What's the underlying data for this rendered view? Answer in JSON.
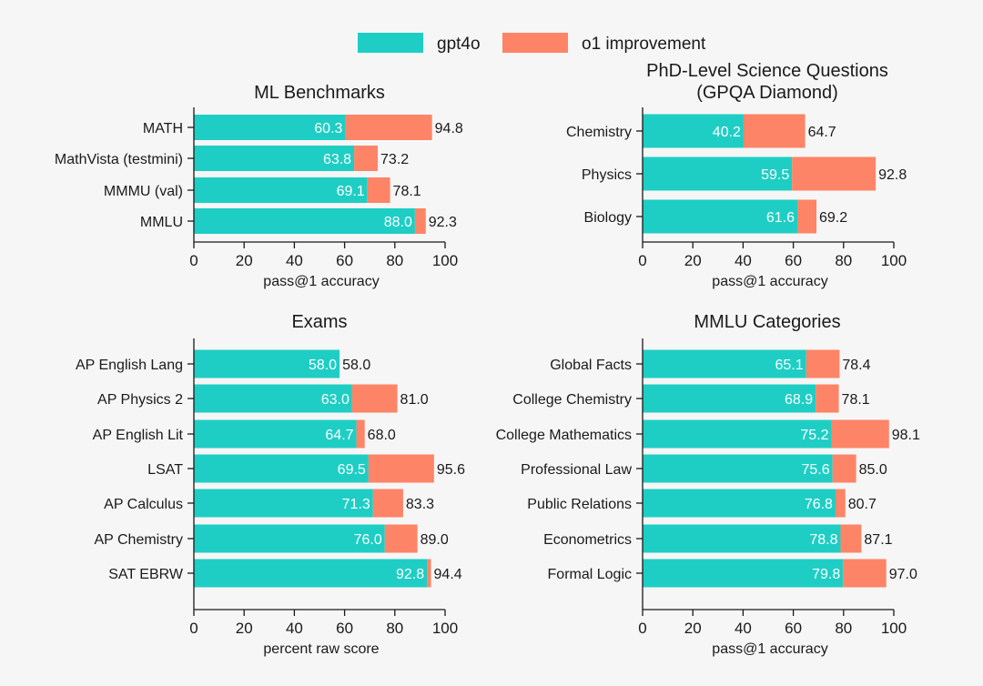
{
  "colors": {
    "background": "#f6f6f6",
    "base": "#1ecec4",
    "improvement": "#fd8466",
    "axis": "#1a1a1a",
    "text": "#1a1a1a",
    "inner_label": "#ffffff"
  },
  "legend": {
    "items": [
      {
        "key": "base",
        "label": "gpt4o"
      },
      {
        "key": "improvement",
        "label": "o1 improvement"
      }
    ]
  },
  "chart_data": [
    {
      "id": "ml",
      "type": "bar",
      "title": "ML Benchmarks",
      "xlabel": "pass@1 accuracy",
      "xlim": [
        0,
        100
      ],
      "xticks": [
        "0",
        "20",
        "40",
        "60",
        "80",
        "100"
      ],
      "categories": [
        "MATH",
        "MathVista (testmini)",
        "MMMU (val)",
        "MMLU"
      ],
      "series": [
        {
          "name": "gpt4o",
          "values": [
            60.3,
            63.8,
            69.1,
            88.0
          ],
          "labels": [
            "60.3",
            "63.8",
            "69.1",
            "88.0"
          ]
        },
        {
          "name": "o1",
          "values": [
            94.8,
            73.2,
            78.1,
            92.3
          ],
          "labels": [
            "94.8",
            "73.2",
            "78.1",
            "92.3"
          ]
        }
      ]
    },
    {
      "id": "gpqa",
      "type": "bar",
      "title": "PhD-Level Science Questions",
      "subtitle": "(GPQA Diamond)",
      "xlabel": "pass@1 accuracy",
      "xlim": [
        0,
        100
      ],
      "xticks": [
        "0",
        "20",
        "40",
        "60",
        "80",
        "100"
      ],
      "categories": [
        "Chemistry",
        "Physics",
        "Biology"
      ],
      "series": [
        {
          "name": "gpt4o",
          "values": [
            40.2,
            59.5,
            61.6
          ],
          "labels": [
            "40.2",
            "59.5",
            "61.6"
          ]
        },
        {
          "name": "o1",
          "values": [
            64.7,
            92.8,
            69.2
          ],
          "labels": [
            "64.7",
            "92.8",
            "69.2"
          ]
        }
      ]
    },
    {
      "id": "exams",
      "type": "bar",
      "title": "Exams",
      "xlabel": "percent raw score",
      "xlim": [
        0,
        100
      ],
      "xticks": [
        "0",
        "20",
        "40",
        "60",
        "80",
        "100"
      ],
      "categories": [
        "AP English Lang",
        "AP Physics 2",
        "AP English Lit",
        "LSAT",
        "AP Calculus",
        "AP Chemistry",
        "SAT EBRW"
      ],
      "series": [
        {
          "name": "gpt4o",
          "values": [
            58.0,
            63.0,
            64.7,
            69.5,
            71.3,
            76.0,
            92.8
          ],
          "labels": [
            "58.0",
            "63.0",
            "64.7",
            "69.5",
            "71.3",
            "76.0",
            "92.8"
          ]
        },
        {
          "name": "o1",
          "values": [
            58.0,
            81.0,
            68.0,
            95.6,
            83.3,
            89.0,
            94.4
          ],
          "labels": [
            "58.0",
            "81.0",
            "68.0",
            "95.6",
            "83.3",
            "89.0",
            "94.4"
          ]
        }
      ]
    },
    {
      "id": "mmlu",
      "type": "bar",
      "title": "MMLU Categories",
      "xlabel": "pass@1 accuracy",
      "xlim": [
        0,
        100
      ],
      "xticks": [
        "0",
        "20",
        "40",
        "60",
        "80",
        "100"
      ],
      "categories": [
        "Global Facts",
        "College Chemistry",
        "College Mathematics",
        "Professional Law",
        "Public Relations",
        "Econometrics",
        "Formal Logic"
      ],
      "series": [
        {
          "name": "gpt4o",
          "values": [
            65.1,
            68.9,
            75.2,
            75.6,
            76.8,
            78.8,
            79.8
          ],
          "labels": [
            "65.1",
            "68.9",
            "75.2",
            "75.6",
            "76.8",
            "78.8",
            "79.8"
          ]
        },
        {
          "name": "o1",
          "values": [
            78.4,
            78.1,
            98.1,
            85.0,
            80.7,
            87.1,
            97.0
          ],
          "labels": [
            "78.4",
            "78.1",
            "98.1",
            "85.0",
            "80.7",
            "87.1",
            "97.0"
          ]
        }
      ]
    }
  ]
}
